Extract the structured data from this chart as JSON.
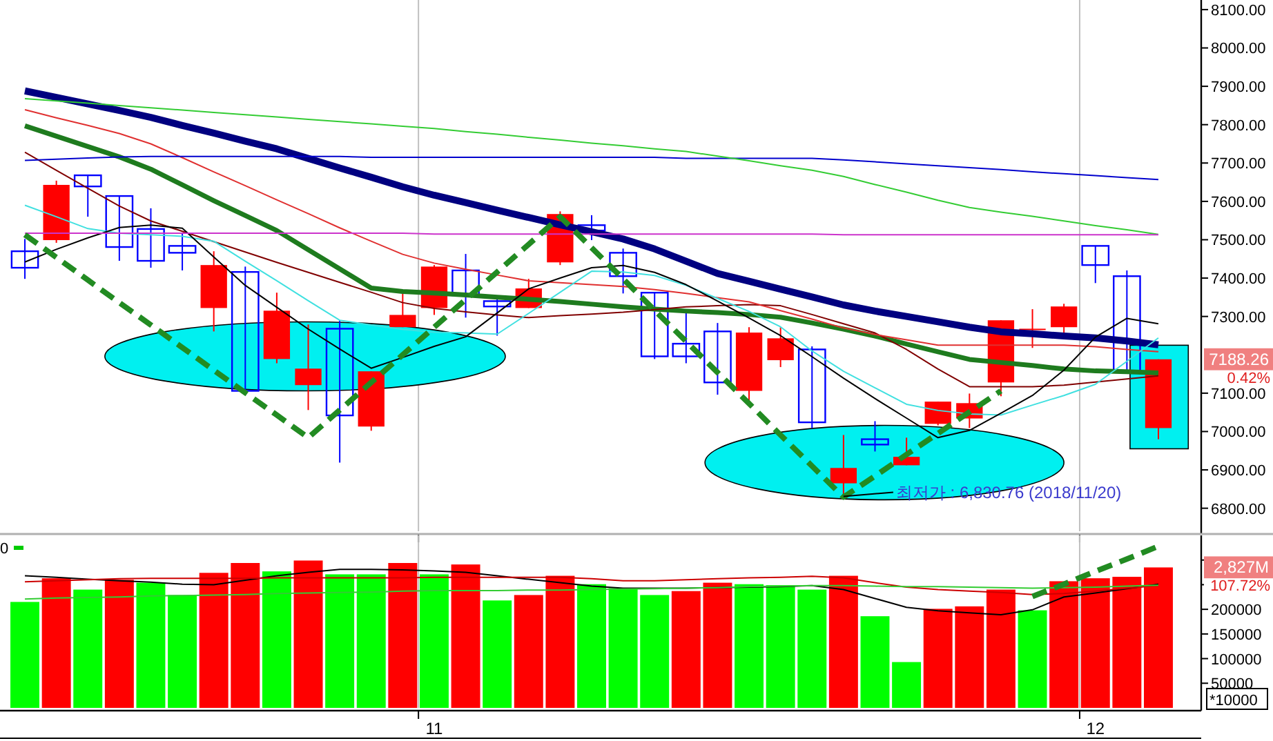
{
  "chart_data": [
    {
      "type": "candlestick",
      "categories": [
        null,
        null,
        null,
        null,
        null,
        null,
        null,
        null,
        null,
        null,
        null,
        null,
        null,
        "11",
        null,
        null,
        null,
        null,
        null,
        null,
        null,
        null,
        null,
        null,
        null,
        null,
        null,
        null,
        null,
        null,
        null,
        null,
        null,
        null,
        "12",
        null,
        null
      ],
      "ohlc": [
        [
          7470,
          7502,
          7398,
          7427
        ],
        [
          7499,
          7654,
          7492,
          7643
        ],
        [
          7668,
          7668,
          7560,
          7639
        ],
        [
          7614,
          7614,
          7445,
          7481
        ],
        [
          7528,
          7582,
          7427,
          7445
        ],
        [
          7484,
          7517,
          7420,
          7466
        ],
        [
          7322,
          7470,
          7261,
          7434
        ],
        [
          7416,
          7430,
          7106,
          7106
        ],
        [
          7189,
          7362,
          7178,
          7315
        ],
        [
          7121,
          7279,
          7056,
          7164
        ],
        [
          7268,
          7290,
          6919,
          7042
        ],
        [
          7013,
          7157,
          7002,
          7157
        ],
        [
          7272,
          7362,
          7272,
          7304
        ],
        [
          7322,
          7434,
          7304,
          7430
        ],
        [
          7420,
          7463,
          7297,
          7355
        ],
        [
          7340,
          7348,
          7250,
          7326
        ],
        [
          7322,
          7398,
          7322,
          7373
        ],
        [
          7441,
          7574,
          7434,
          7567
        ],
        [
          7538,
          7564,
          7499,
          7524
        ],
        [
          7466,
          7477,
          7360,
          7405
        ],
        [
          7362,
          7362,
          7189,
          7196
        ],
        [
          7229,
          7315,
          7178,
          7196
        ],
        [
          7261,
          7283,
          7096,
          7128
        ],
        [
          7106,
          7272,
          7074,
          7258
        ],
        [
          7186,
          7272,
          7168,
          7243
        ],
        [
          7214,
          7222,
          7009,
          7024
        ],
        [
          6865,
          6991,
          6830.76,
          6905
        ],
        [
          6980,
          7027,
          6948,
          6966
        ],
        [
          6912,
          6984,
          6912,
          6934
        ],
        [
          7020,
          7078,
          7016,
          7078
        ],
        [
          7034,
          7099,
          7009,
          7074
        ],
        [
          7128,
          7290,
          7092,
          7290
        ],
        [
          7265,
          7319,
          7218,
          7268
        ],
        [
          7272,
          7333,
          7254,
          7326
        ],
        [
          7484,
          7484,
          7387,
          7434
        ],
        [
          7405,
          7420,
          7157,
          7157
        ],
        [
          7009,
          7188.26,
          6980,
          7188.26
        ]
      ],
      "colors": [
        "#0000ff",
        "#ff0000",
        "#0000ff",
        "#0000ff",
        "#0000ff",
        "#0000ff",
        "#ff0000",
        "#0000ff",
        "#ff0000",
        "#ff0000",
        "#0000ff",
        "#ff0000",
        "#ff0000",
        "#ff0000",
        "#0000ff",
        "#0000ff",
        "#ff0000",
        "#ff0000",
        "#0000ff",
        "#0000ff",
        "#0000ff",
        "#0000ff",
        "#0000ff",
        "#ff0000",
        "#ff0000",
        "#0000ff",
        "#ff0000",
        "#0000ff",
        "#ff0000",
        "#ff0000",
        "#ff0000",
        "#ff0000",
        "#ff0000",
        "#ff0000",
        "#0000ff",
        "#0000ff",
        "#ff0000"
      ],
      "series": [
        {
          "type": "line",
          "color": "#000080",
          "values": [
            7888,
            7871,
            7854,
            7837,
            7819,
            7798,
            7778,
            7757,
            7737,
            7712,
            7687,
            7663,
            7638,
            7616,
            7597,
            7577,
            7558,
            7539,
            7521,
            7502,
            7476,
            7444,
            7412,
            7392,
            7371,
            7351,
            7330,
            7314,
            7300,
            7286,
            7272,
            7260,
            7255,
            7249,
            7244,
            7236,
            7226
          ]
        },
        {
          "type": "line",
          "color": "#1e7b1e",
          "values": [
            7797,
            7770,
            7743,
            7716,
            7684,
            7643,
            7602,
            7563,
            7524,
            7474,
            7424,
            7374,
            7365,
            7361,
            7356,
            7350,
            7345,
            7339,
            7332,
            7325,
            7319,
            7314,
            7310,
            7305,
            7298,
            7283,
            7267,
            7249,
            7228,
            7208,
            7188,
            7180,
            7172,
            7163,
            7158,
            7156,
            7153
          ]
        },
        {
          "type": "line",
          "color": "#800000",
          "values": [
            7728,
            7681,
            7634,
            7588,
            7549,
            7522,
            7495,
            7468,
            7441,
            7415,
            7389,
            7363,
            7336,
            7321,
            7312,
            7304,
            7297,
            7302,
            7306,
            7311,
            7318,
            7325,
            7328,
            7331,
            7328,
            7305,
            7281,
            7257,
            7214,
            7163,
            7117,
            7117,
            7117,
            7121,
            7129,
            7137,
            7145
          ]
        },
        {
          "type": "line",
          "color": "#e03030",
          "values": [
            7839,
            7818,
            7798,
            7777,
            7750,
            7714,
            7677,
            7641,
            7604,
            7568,
            7531,
            7496,
            7462,
            7439,
            7423,
            7408,
            7393,
            7388,
            7383,
            7378,
            7370,
            7360,
            7349,
            7338,
            7315,
            7293,
            7270,
            7253,
            7239,
            7225,
            7225,
            7225,
            7225,
            7225,
            7221,
            7214,
            7208
          ]
        },
        {
          "type": "line",
          "color": "#40e0e0",
          "values": [
            7590,
            7560,
            7529,
            7517,
            7513,
            7509,
            7496,
            7444,
            7393,
            7341,
            7290,
            7278,
            7266,
            7259,
            7257,
            7254,
            7308,
            7363,
            7418,
            7416,
            7407,
            7381,
            7347,
            7313,
            7273,
            7210,
            7157,
            7114,
            7071,
            7055,
            7046,
            7043,
            7069,
            7094,
            7123,
            7183,
            7244
          ]
        },
        {
          "type": "line",
          "color": "#000000",
          "values": [
            7442,
            7475,
            7505,
            7532,
            7538,
            7530,
            7455,
            7381,
            7324,
            7267,
            7215,
            7165,
            7193,
            7222,
            7247,
            7309,
            7372,
            7400,
            7427,
            7433,
            7415,
            7383,
            7340,
            7296,
            7250,
            7195,
            7139,
            7086,
            7035,
            6984,
            7003,
            7048,
            7094,
            7160,
            7246,
            7295,
            7281
          ]
        },
        {
          "type": "line",
          "color": "#0000cd",
          "values": [
            7707,
            7710,
            7713,
            7716,
            7717,
            7717,
            7717,
            7717,
            7717,
            7717,
            7717,
            7715,
            7715,
            7715,
            7715,
            7715,
            7715,
            7715,
            7715,
            7715,
            7715,
            7712,
            7712,
            7712,
            7712,
            7712,
            7708,
            7703,
            7698,
            7693,
            7688,
            7683,
            7677,
            7672,
            7667,
            7662,
            7657
          ]
        },
        {
          "type": "line",
          "color": "#33cc33",
          "values": [
            7868,
            7862,
            7856,
            7850,
            7844,
            7838,
            7832,
            7826,
            7820,
            7814,
            7808,
            7802,
            7796,
            7790,
            7782,
            7775,
            7767,
            7760,
            7752,
            7745,
            7737,
            7730,
            7718,
            7706,
            7693,
            7681,
            7665,
            7644,
            7624,
            7603,
            7584,
            7572,
            7561,
            7549,
            7537,
            7526,
            7514
          ]
        },
        {
          "type": "line",
          "color": "#cc33cc",
          "values": [
            7517,
            7517,
            7517,
            7517,
            7517,
            7517,
            7517,
            7517,
            7517,
            7517,
            7517,
            7517,
            7517,
            7515,
            7515,
            7515,
            7515,
            7515,
            7515,
            7515,
            7515,
            7515,
            7515,
            7515,
            7515,
            7515,
            7513,
            7513,
            7513,
            7513,
            7513,
            7513,
            7513,
            7513,
            7513,
            7513,
            7513
          ]
        },
        {
          "type": "line",
          "color": "#228b22",
          "line_style": "dashed",
          "values": [
            7513,
            7454,
            7395,
            7336,
            7278,
            7219,
            7160,
            7101,
            7043,
            6984,
            7056,
            7128,
            7200,
            7272,
            7344,
            7416,
            7488,
            7560,
            7479,
            7398,
            7316,
            7235,
            7154,
            7073,
            6991,
            6910,
            6829,
            6884,
            6940,
            6995,
            7051,
            7106,
            null,
            null,
            null,
            null,
            null
          ]
        }
      ],
      "ylim": [
        6740,
        8125
      ],
      "yticks": [
        {
          "value": 6800,
          "label": "6800.00"
        },
        {
          "value": 6900,
          "label": "6900.00"
        },
        {
          "value": 7000,
          "label": "7000.00"
        },
        {
          "value": 7100,
          "label": "7100.00"
        },
        {
          "value": 7300,
          "label": "7300.00"
        },
        {
          "value": 7400,
          "label": "7400.00"
        },
        {
          "value": 7500,
          "label": "7500.00"
        },
        {
          "value": 7600,
          "label": "7600.00"
        },
        {
          "value": 7700,
          "label": "7700.00"
        },
        {
          "value": 7800,
          "label": "7800.00"
        },
        {
          "value": 7900,
          "label": "7900.00"
        },
        {
          "value": 8000,
          "label": "8000.00"
        },
        {
          "value": 8100,
          "label": "8100.00"
        }
      ],
      "tick_labels": "y",
      "grid": "x",
      "annotations": [
        "최저가 : 6,830.76 (2018/11/20)",
        "7188.26",
        "0.42%"
      ]
    },
    {
      "type": "bar",
      "categories": [
        null,
        null,
        null,
        null,
        null,
        null,
        null,
        null,
        null,
        null,
        null,
        null,
        null,
        "11",
        null,
        null,
        null,
        null,
        null,
        null,
        null,
        null,
        null,
        null,
        null,
        null,
        null,
        null,
        null,
        null,
        null,
        null,
        null,
        null,
        "12",
        null,
        null
      ],
      "series": [
        {
          "type": "bar",
          "colors": [
            "#00ff00",
            "#ff0000",
            "#00ff00",
            "#ff0000",
            "#00ff00",
            "#00ff00",
            "#ff0000",
            "#ff0000",
            "#00ff00",
            "#ff0000",
            "#00ff00",
            "#00ff00",
            "#ff0000",
            "#00ff00",
            "#ff0000",
            "#00ff00",
            "#ff0000",
            "#ff0000",
            "#00ff00",
            "#00ff00",
            "#00ff00",
            "#ff0000",
            "#ff0000",
            "#00ff00",
            "#00ff00",
            "#00ff00",
            "#ff0000",
            "#00ff00",
            "#00ff00",
            "#ff0000",
            "#ff0000",
            "#ff0000",
            "#00ff00",
            "#ff0000",
            "#ff0000",
            "#ff0000",
            "#ff0000"
          ],
          "values": [
            215000,
            263000,
            240000,
            260000,
            254000,
            229000,
            274000,
            294000,
            277000,
            299000,
            271000,
            271000,
            294000,
            271000,
            291000,
            218000,
            229000,
            268000,
            251000,
            243000,
            229000,
            237000,
            254000,
            251000,
            249000,
            240000,
            268000,
            186000,
            93000,
            201000,
            206000,
            240000,
            198000,
            257000,
            263000,
            266000,
            285000
          ]
        },
        {
          "type": "line",
          "color": "#000000",
          "values": [
            268000,
            265000,
            261000,
            258000,
            255000,
            251000,
            250000,
            259000,
            268000,
            275000,
            281000,
            281000,
            280000,
            278000,
            275000,
            268000,
            261000,
            254000,
            247000,
            243000,
            243000,
            243000,
            244000,
            245000,
            246000,
            248000,
            240000,
            222000,
            204000,
            197000,
            193000,
            189000,
            199000,
            225000,
            233000,
            242000,
            251000
          ]
        },
        {
          "type": "line",
          "color": "#cc0000",
          "values": [
            256000,
            258000,
            260000,
            262000,
            263000,
            263000,
            263000,
            263000,
            264000,
            264000,
            264000,
            264000,
            264000,
            265000,
            265000,
            265000,
            265000,
            265000,
            262000,
            258000,
            258000,
            260000,
            262000,
            264000,
            265000,
            267000,
            264000,
            254000,
            245000,
            240000,
            237000,
            234000,
            230000,
            232000,
            237000,
            243000,
            248000
          ]
        },
        {
          "type": "line",
          "color": "#33cc33",
          "values": [
            221000,
            223000,
            224000,
            225000,
            227000,
            228000,
            229000,
            230000,
            232000,
            233000,
            234000,
            235000,
            237000,
            238000,
            238000,
            238000,
            239000,
            239000,
            240000,
            241000,
            242000,
            243000,
            244000,
            246000,
            247000,
            248000,
            248000,
            247000,
            246000,
            246000,
            245000,
            244000,
            243000,
            244000,
            245000,
            247000,
            249000
          ]
        },
        {
          "type": "line",
          "color": "#228b22",
          "line_style": "dashed",
          "values": [
            null,
            null,
            null,
            null,
            null,
            null,
            null,
            null,
            null,
            null,
            null,
            null,
            null,
            null,
            null,
            null,
            null,
            null,
            null,
            null,
            null,
            null,
            null,
            null,
            null,
            null,
            null,
            null,
            null,
            null,
            null,
            null,
            226000,
            251000,
            277000,
            302000,
            328000
          ]
        }
      ],
      "ylim": [
        0,
        350000
      ],
      "yticks": [
        50000,
        100000,
        150000,
        200000,
        {
          "value": 250000,
          "label": null
        },
        {
          "value": 300000,
          "label": null
        }
      ],
      "grid": "x",
      "annotations": [
        "0",
        "2,827M",
        "107.72%",
        "*10000"
      ]
    }
  ]
}
